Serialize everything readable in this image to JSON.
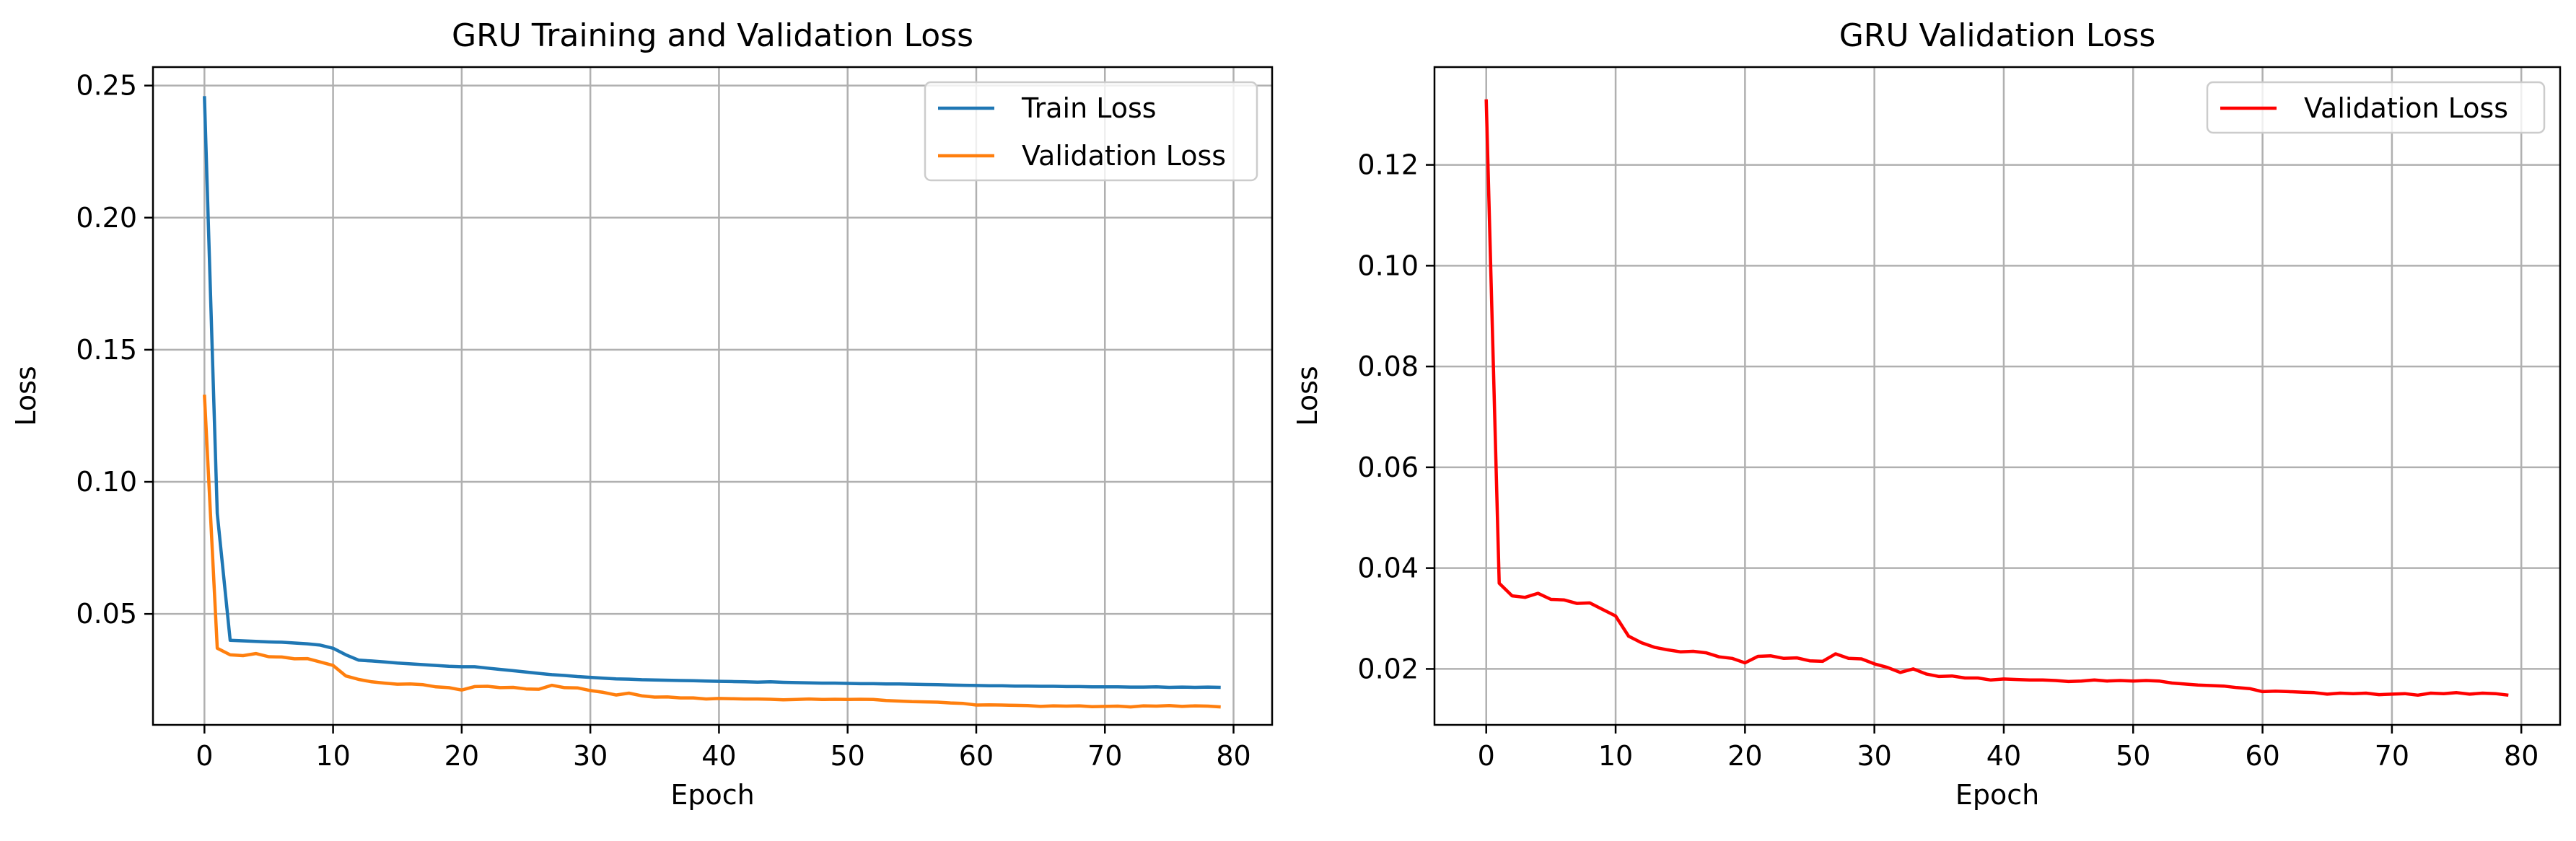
{
  "chart_data": [
    {
      "type": "line",
      "title": "GRU Training and Validation Loss",
      "xlabel": "Epoch",
      "ylabel": "Loss",
      "xlim": [
        -4,
        83
      ],
      "ylim": [
        0.008,
        0.257
      ],
      "xticks": [
        0,
        10,
        20,
        30,
        40,
        50,
        60,
        70,
        80
      ],
      "xtick_labels": [
        "0",
        "10",
        "20",
        "30",
        "40",
        "50",
        "60",
        "70",
        "80"
      ],
      "yticks": [
        0.05,
        0.1,
        0.15,
        0.2,
        0.25
      ],
      "ytick_labels": [
        "0.05",
        "0.10",
        "0.15",
        "0.20",
        "0.25"
      ],
      "grid": true,
      "legend_position": "top-right",
      "series": [
        {
          "name": "Train Loss",
          "color": "#1f77b4",
          "x": [
            0,
            1,
            2,
            3,
            4,
            5,
            6,
            7,
            8,
            9,
            10,
            11,
            12,
            13,
            14,
            15,
            16,
            17,
            18,
            19,
            20,
            21,
            22,
            23,
            24,
            25,
            26,
            27,
            28,
            29,
            30,
            31,
            32,
            33,
            34,
            35,
            36,
            37,
            38,
            39,
            40,
            41,
            42,
            43,
            44,
            45,
            46,
            47,
            48,
            49,
            50,
            51,
            52,
            53,
            54,
            55,
            56,
            57,
            58,
            59,
            60,
            61,
            62,
            63,
            64,
            65,
            66,
            67,
            68,
            69,
            70,
            71,
            72,
            73,
            74,
            75,
            76,
            77,
            78,
            79
          ],
          "values": [
            0.246,
            0.088,
            0.04,
            0.0398,
            0.0396,
            0.0394,
            0.0393,
            0.039,
            0.0387,
            0.0382,
            0.037,
            0.0345,
            0.0325,
            0.0322,
            0.0318,
            0.0314,
            0.0311,
            0.0308,
            0.0305,
            0.0302,
            0.03,
            0.03,
            0.0295,
            0.029,
            0.0285,
            0.028,
            0.0275,
            0.027,
            0.0267,
            0.0263,
            0.026,
            0.0257,
            0.0254,
            0.0253,
            0.0251,
            0.025,
            0.0249,
            0.0248,
            0.0247,
            0.0246,
            0.0245,
            0.0244,
            0.0243,
            0.0242,
            0.0243,
            0.0241,
            0.024,
            0.0239,
            0.0238,
            0.0238,
            0.0237,
            0.0236,
            0.0236,
            0.0235,
            0.0235,
            0.0234,
            0.0233,
            0.0232,
            0.0231,
            0.023,
            0.0229,
            0.0228,
            0.0228,
            0.0227,
            0.0227,
            0.0226,
            0.0226,
            0.0225,
            0.0225,
            0.0224,
            0.0224,
            0.0224,
            0.0223,
            0.0223,
            0.0224,
            0.0222,
            0.0223,
            0.0222,
            0.0223,
            0.0222
          ]
        },
        {
          "name": "Validation Loss",
          "color": "#ff7f0e",
          "x": [
            0,
            1,
            2,
            3,
            4,
            5,
            6,
            7,
            8,
            9,
            10,
            11,
            12,
            13,
            14,
            15,
            16,
            17,
            18,
            19,
            20,
            21,
            22,
            23,
            24,
            25,
            26,
            27,
            28,
            29,
            30,
            31,
            32,
            33,
            34,
            35,
            36,
            37,
            38,
            39,
            40,
            41,
            42,
            43,
            44,
            45,
            46,
            47,
            48,
            49,
            50,
            51,
            52,
            53,
            54,
            55,
            56,
            57,
            58,
            59,
            60,
            61,
            62,
            63,
            64,
            65,
            66,
            67,
            68,
            69,
            70,
            71,
            72,
            73,
            74,
            75,
            76,
            77,
            78,
            79
          ],
          "values": [
            0.133,
            0.037,
            0.0345,
            0.0342,
            0.035,
            0.0338,
            0.0337,
            0.033,
            0.0331,
            0.0318,
            0.0305,
            0.0265,
            0.0252,
            0.0243,
            0.0238,
            0.0234,
            0.0235,
            0.0232,
            0.0224,
            0.0221,
            0.0212,
            0.0225,
            0.0226,
            0.0221,
            0.0222,
            0.0216,
            0.0215,
            0.023,
            0.0221,
            0.022,
            0.021,
            0.0203,
            0.0193,
            0.02,
            0.019,
            0.0185,
            0.0186,
            0.0182,
            0.0182,
            0.0178,
            0.018,
            0.0179,
            0.0178,
            0.0178,
            0.0177,
            0.0175,
            0.0176,
            0.0178,
            0.0176,
            0.0177,
            0.0176,
            0.0177,
            0.0176,
            0.0172,
            0.017,
            0.0168,
            0.0167,
            0.0166,
            0.0163,
            0.0161,
            0.0155,
            0.0156,
            0.0155,
            0.0154,
            0.0153,
            0.015,
            0.0152,
            0.0151,
            0.0152,
            0.0149,
            0.015,
            0.0151,
            0.0148,
            0.0152,
            0.0151,
            0.0153,
            0.015,
            0.0152,
            0.0151,
            0.0148
          ]
        }
      ]
    },
    {
      "type": "line",
      "title": "GRU Validation Loss",
      "xlabel": "Epoch",
      "ylabel": "Loss",
      "xlim": [
        -4,
        83
      ],
      "ylim": [
        0.0089,
        0.1394
      ],
      "xticks": [
        0,
        10,
        20,
        30,
        40,
        50,
        60,
        70,
        80
      ],
      "xtick_labels": [
        "0",
        "10",
        "20",
        "30",
        "40",
        "50",
        "60",
        "70",
        "80"
      ],
      "yticks": [
        0.02,
        0.04,
        0.06,
        0.08,
        0.1,
        0.12
      ],
      "ytick_labels": [
        "0.02",
        "0.04",
        "0.06",
        "0.08",
        "0.10",
        "0.12"
      ],
      "grid": true,
      "legend_position": "top-right",
      "series": [
        {
          "name": "Validation Loss",
          "color": "#ff0000",
          "x": [
            0,
            1,
            2,
            3,
            4,
            5,
            6,
            7,
            8,
            9,
            10,
            11,
            12,
            13,
            14,
            15,
            16,
            17,
            18,
            19,
            20,
            21,
            22,
            23,
            24,
            25,
            26,
            27,
            28,
            29,
            30,
            31,
            32,
            33,
            34,
            35,
            36,
            37,
            38,
            39,
            40,
            41,
            42,
            43,
            44,
            45,
            46,
            47,
            48,
            49,
            50,
            51,
            52,
            53,
            54,
            55,
            56,
            57,
            58,
            59,
            60,
            61,
            62,
            63,
            64,
            65,
            66,
            67,
            68,
            69,
            70,
            71,
            72,
            73,
            74,
            75,
            76,
            77,
            78,
            79
          ],
          "values": [
            0.133,
            0.037,
            0.0345,
            0.0342,
            0.035,
            0.0338,
            0.0337,
            0.033,
            0.0331,
            0.0318,
            0.0305,
            0.0265,
            0.0252,
            0.0243,
            0.0238,
            0.0234,
            0.0235,
            0.0232,
            0.0224,
            0.0221,
            0.0212,
            0.0225,
            0.0226,
            0.0221,
            0.0222,
            0.0216,
            0.0215,
            0.023,
            0.0221,
            0.022,
            0.021,
            0.0203,
            0.0193,
            0.02,
            0.019,
            0.0185,
            0.0186,
            0.0182,
            0.0182,
            0.0178,
            0.018,
            0.0179,
            0.0178,
            0.0178,
            0.0177,
            0.0175,
            0.0176,
            0.0178,
            0.0176,
            0.0177,
            0.0176,
            0.0177,
            0.0176,
            0.0172,
            0.017,
            0.0168,
            0.0167,
            0.0166,
            0.0163,
            0.0161,
            0.0155,
            0.0156,
            0.0155,
            0.0154,
            0.0153,
            0.015,
            0.0152,
            0.0151,
            0.0152,
            0.0149,
            0.015,
            0.0151,
            0.0148,
            0.0152,
            0.0151,
            0.0153,
            0.015,
            0.0152,
            0.0151,
            0.0148
          ]
        }
      ]
    }
  ]
}
